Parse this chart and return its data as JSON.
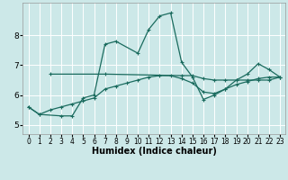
{
  "title": "",
  "xlabel": "Humidex (Indice chaleur)",
  "bg_color": "#cce8e8",
  "grid_color": "#ffffff",
  "line_color": "#1a6b5e",
  "xlim": [
    -0.5,
    23.5
  ],
  "ylim": [
    4.7,
    9.1
  ],
  "xticks": [
    0,
    1,
    2,
    3,
    4,
    5,
    6,
    7,
    8,
    9,
    10,
    11,
    12,
    13,
    14,
    15,
    16,
    17,
    18,
    19,
    20,
    21,
    22,
    23
  ],
  "yticks": [
    5,
    6,
    7,
    8
  ],
  "series1_x": [
    0,
    1,
    3,
    4,
    5,
    6,
    7,
    8,
    10,
    11,
    12,
    13,
    14,
    15,
    16,
    17,
    18,
    19,
    20,
    21,
    22,
    23
  ],
  "series1_y": [
    5.6,
    5.35,
    5.3,
    5.3,
    5.9,
    6.0,
    7.7,
    7.8,
    7.4,
    8.2,
    8.65,
    8.75,
    7.1,
    6.6,
    5.85,
    6.0,
    6.2,
    6.5,
    6.7,
    7.05,
    6.85,
    6.6
  ],
  "series2_x": [
    2,
    7,
    14,
    15,
    16,
    17,
    18,
    19,
    20,
    21,
    22,
    23
  ],
  "series2_y": [
    6.7,
    6.7,
    6.65,
    6.65,
    6.55,
    6.5,
    6.5,
    6.5,
    6.5,
    6.5,
    6.5,
    6.6
  ],
  "series3_x": [
    0,
    1,
    2,
    3,
    4,
    5,
    6,
    7,
    8,
    9,
    10,
    11,
    12,
    13,
    14,
    15,
    16,
    17,
    18,
    19,
    20,
    21,
    22,
    23
  ],
  "series3_y": [
    5.6,
    5.35,
    5.5,
    5.6,
    5.7,
    5.8,
    5.9,
    6.2,
    6.3,
    6.4,
    6.5,
    6.6,
    6.65,
    6.65,
    6.55,
    6.4,
    6.1,
    6.05,
    6.2,
    6.35,
    6.45,
    6.55,
    6.6,
    6.6
  ]
}
